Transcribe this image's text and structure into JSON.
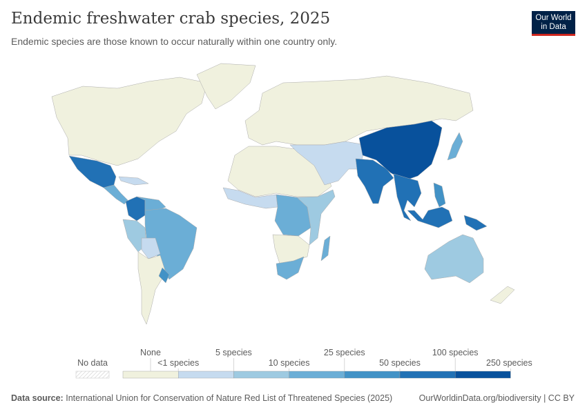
{
  "header": {
    "title": "Endemic freshwater crab species, 2025",
    "subtitle": "Endemic species are those known to occur naturally within one country only.",
    "logo": "Our World in Data"
  },
  "legend": {
    "no_data": "No data",
    "bins": [
      {
        "label": "None",
        "color": "#f0f1de"
      },
      {
        "label": "<1 species",
        "color": "#c6dbef"
      },
      {
        "label": "5 species",
        "color": "#9ecae1"
      },
      {
        "label": "10 species",
        "color": "#6baed6"
      },
      {
        "label": "25 species",
        "color": "#4292c6"
      },
      {
        "label": "50 species",
        "color": "#2171b5"
      },
      {
        "label": "100 species",
        "color": "#08519c"
      },
      {
        "label": "250 species",
        "color": ""
      }
    ]
  },
  "map_regions": [
    {
      "region": "North America",
      "bin": 0
    },
    {
      "region": "Greenland",
      "bin": 0
    },
    {
      "region": "Mexico",
      "bin": 5
    },
    {
      "region": "Central America",
      "bin": 3
    },
    {
      "region": "Caribbean",
      "bin": 1
    },
    {
      "region": "Colombia",
      "bin": 5
    },
    {
      "region": "Venezuela",
      "bin": 3
    },
    {
      "region": "Peru",
      "bin": 2
    },
    {
      "region": "Brazil",
      "bin": 3
    },
    {
      "region": "Bolivia",
      "bin": 1
    },
    {
      "region": "Southern Cone",
      "bin": 0
    },
    {
      "region": "Uruguay",
      "bin": 4
    },
    {
      "region": "Europe and Russia",
      "bin": 0
    },
    {
      "region": "Northern Africa",
      "bin": 0
    },
    {
      "region": "West Africa",
      "bin": 1
    },
    {
      "region": "Central Africa",
      "bin": 3
    },
    {
      "region": "East Africa",
      "bin": 2
    },
    {
      "region": "Southern Africa",
      "bin": 0
    },
    {
      "region": "South Africa",
      "bin": 3
    },
    {
      "region": "Madagascar",
      "bin": 3
    },
    {
      "region": "Middle East",
      "bin": 1
    },
    {
      "region": "India",
      "bin": 5
    },
    {
      "region": "China",
      "bin": 6
    },
    {
      "region": "Japan",
      "bin": 3
    },
    {
      "region": "Mainland Southeast Asia",
      "bin": 5
    },
    {
      "region": "Philippines",
      "bin": 4
    },
    {
      "region": "Indonesia",
      "bin": 5
    },
    {
      "region": "New Guinea",
      "bin": 5
    },
    {
      "region": "Australia",
      "bin": 2
    },
    {
      "region": "New Zealand",
      "bin": 0
    }
  ],
  "footer": {
    "source_label": "Data source:",
    "source": "International Union for Conservation of Nature Red List of Threatened Species (2025)",
    "link": "OurWorldinData.org/biodiversity | CC BY"
  }
}
